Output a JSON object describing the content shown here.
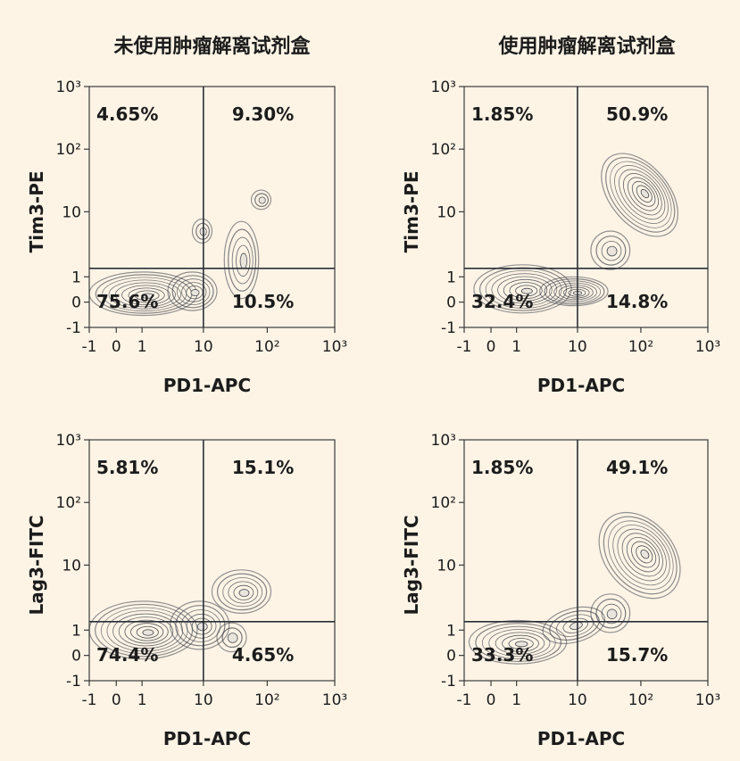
{
  "column_titles": [
    "未使用肿瘤解离试剂盒",
    "使用肿瘤解离试剂盒"
  ],
  "chart_data": [
    {
      "type": "contour",
      "column_title": "未使用肿瘤解离试剂盒",
      "xlabel": "PD1-APC",
      "ylabel": "Tim3-PE",
      "x_ticks": [
        "-1",
        "0",
        "1",
        "10",
        "10²",
        "10³"
      ],
      "y_ticks": [
        "-1",
        "0",
        "1",
        "10",
        "10²",
        "10³"
      ],
      "quadrants": {
        "upper_left": "4.65%",
        "upper_right": "9.30%",
        "lower_left": "75.6%",
        "lower_right": "10.5%"
      },
      "gate": {
        "x": 10,
        "y": 2
      }
    },
    {
      "type": "contour",
      "column_title": "使用肿瘤解离试剂盒",
      "xlabel": "PD1-APC",
      "ylabel": "Tim3-PE",
      "x_ticks": [
        "-1",
        "0",
        "1",
        "10",
        "10²",
        "10³"
      ],
      "y_ticks": [
        "-1",
        "0",
        "1",
        "10",
        "10²",
        "10³"
      ],
      "quadrants": {
        "upper_left": "1.85%",
        "upper_right": "50.9%",
        "lower_left": "32.4%",
        "lower_right": "14.8%"
      },
      "gate": {
        "x": 10,
        "y": 2
      }
    },
    {
      "type": "contour",
      "column_title": "未使用肿瘤解离试剂盒",
      "xlabel": "PD1-APC",
      "ylabel": "Lag3-FITC",
      "x_ticks": [
        "-1",
        "0",
        "1",
        "10",
        "10²",
        "10³"
      ],
      "y_ticks": [
        "-1",
        "0",
        "1",
        "10",
        "10²",
        "10³"
      ],
      "quadrants": {
        "upper_left": "5.81%",
        "upper_right": "15.1%",
        "lower_left": "74.4%",
        "lower_right": "4.65%"
      },
      "gate": {
        "x": 10,
        "y": 2
      }
    },
    {
      "type": "contour",
      "column_title": "使用肿瘤解离试剂盒",
      "xlabel": "PD1-APC",
      "ylabel": "Lag3-FITC",
      "x_ticks": [
        "-1",
        "0",
        "1",
        "10",
        "10²",
        "10³"
      ],
      "y_ticks": [
        "-1",
        "0",
        "1",
        "10",
        "10²",
        "10³"
      ],
      "quadrants": {
        "upper_left": "1.85%",
        "upper_right": "49.1%",
        "lower_left": "33.3%",
        "lower_right": "15.7%"
      },
      "gate": {
        "x": 10,
        "y": 2
      }
    }
  ]
}
